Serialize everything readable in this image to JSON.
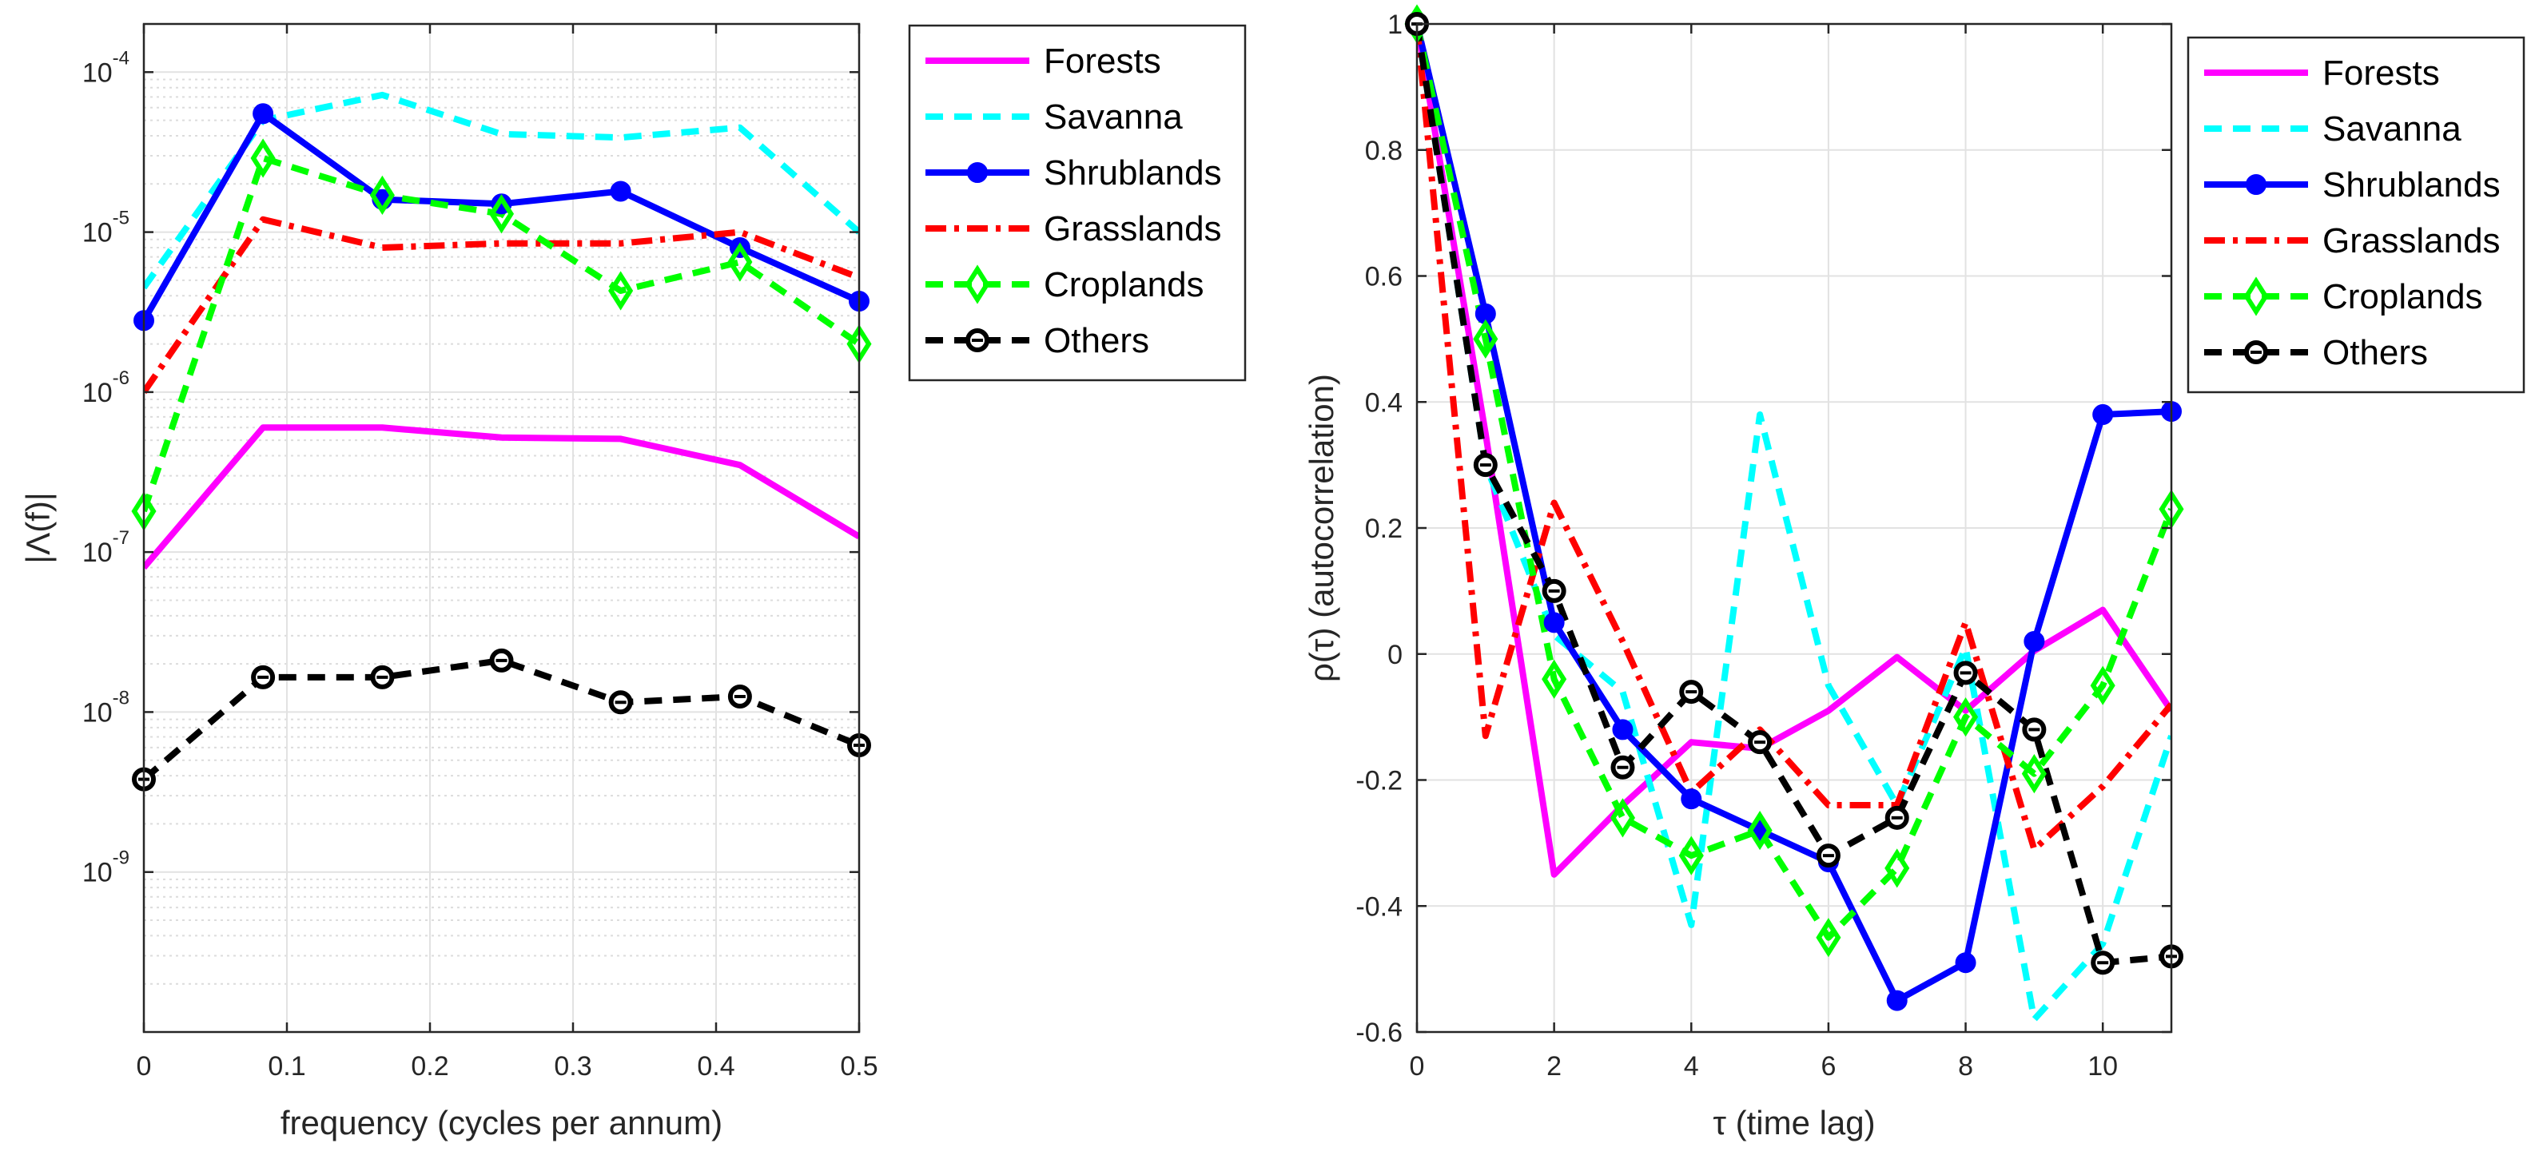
{
  "chart_data": [
    {
      "type": "line",
      "y_scale": "log",
      "xlabel": "frequency (cycles per annum)",
      "ylabel": "|Λ(f)|",
      "xlim": [
        0,
        0.5
      ],
      "ylim": [
        1e-10,
        0.0002
      ],
      "x_ticks": [
        0,
        0.1,
        0.2,
        0.3,
        0.4,
        0.5
      ],
      "x_tick_labels": [
        "0",
        "0.1",
        "0.2",
        "0.3",
        "0.4",
        "0.5"
      ],
      "y_ticks": [
        {
          "value": 1e-09,
          "base": "10",
          "exp": "-9"
        },
        {
          "value": 1e-08,
          "base": "10",
          "exp": "-8"
        },
        {
          "value": 1e-07,
          "base": "10",
          "exp": "-7"
        },
        {
          "value": 1e-06,
          "base": "10",
          "exp": "-6"
        },
        {
          "value": 1e-05,
          "base": "10",
          "exp": "-5"
        },
        {
          "value": 0.0001,
          "base": "10",
          "exp": "-4"
        }
      ],
      "grid": true,
      "legend_position": "outside-right",
      "x": [
        0,
        0.0833,
        0.1667,
        0.25,
        0.3333,
        0.4167,
        0.5
      ],
      "series": [
        {
          "name": "Forests",
          "color": "#ff00ff",
          "style": "solid",
          "marker": "none",
          "values": [
            8e-08,
            6e-07,
            6e-07,
            5.2e-07,
            5.1e-07,
            3.5e-07,
            1.25e-07
          ]
        },
        {
          "name": "Savanna",
          "color": "#00ffff",
          "style": "dashed",
          "marker": "none",
          "values": [
            4.5e-06,
            5e-05,
            7.2e-05,
            4.1e-05,
            3.9e-05,
            4.5e-05,
            1e-05
          ]
        },
        {
          "name": "Shrublands",
          "color": "#0000ff",
          "style": "solid",
          "marker": "dot",
          "values": [
            2.8e-06,
            5.5e-05,
            1.6e-05,
            1.5e-05,
            1.8e-05,
            8e-06,
            3.7e-06
          ]
        },
        {
          "name": "Grasslands",
          "color": "#ff0000",
          "style": "dashdot",
          "marker": "none",
          "values": [
            1e-06,
            1.2e-05,
            8e-06,
            8.5e-06,
            8.5e-06,
            1e-05,
            5.2e-06
          ]
        },
        {
          "name": "Croplands",
          "color": "#00ff00",
          "style": "dashed",
          "marker": "diamond",
          "values": [
            1.8e-07,
            2.9e-05,
            1.7e-05,
            1.3e-05,
            4.3e-06,
            6.5e-06,
            2e-06
          ]
        },
        {
          "name": "Others",
          "color": "#000000",
          "style": "dashed",
          "marker": "circle-dash",
          "values": [
            3.8e-09,
            1.65e-08,
            1.65e-08,
            2.1e-08,
            1.15e-08,
            1.25e-08,
            6.2e-09
          ]
        }
      ]
    },
    {
      "type": "line",
      "y_scale": "linear",
      "xlabel": "τ (time lag)",
      "ylabel": "ρ(τ) (autocorrelation)",
      "xlim": [
        0,
        11
      ],
      "ylim": [
        -0.6,
        1
      ],
      "x_ticks": [
        0,
        2,
        4,
        6,
        8,
        10
      ],
      "x_tick_labels": [
        "0",
        "2",
        "4",
        "6",
        "8",
        "10"
      ],
      "y_ticks": [
        -0.6,
        -0.4,
        -0.2,
        0,
        0.2,
        0.4,
        0.6,
        0.8,
        1
      ],
      "y_tick_labels": [
        "-0.6",
        "-0.4",
        "-0.2",
        "0",
        "0.2",
        "0.4",
        "0.6",
        "0.8",
        "1"
      ],
      "grid": true,
      "legend_position": "top-right",
      "x": [
        0,
        1,
        2,
        3,
        4,
        5,
        6,
        7,
        8,
        9,
        10,
        11
      ],
      "series": [
        {
          "name": "Forests",
          "color": "#ff00ff",
          "style": "solid",
          "marker": "none",
          "values": [
            1,
            0.35,
            -0.35,
            -0.24,
            -0.14,
            -0.15,
            -0.09,
            -0.005,
            -0.09,
            0.005,
            0.07,
            -0.09
          ]
        },
        {
          "name": "Savanna",
          "color": "#00ffff",
          "style": "dashed",
          "marker": "none",
          "values": [
            1,
            0.3,
            0.03,
            -0.06,
            -0.43,
            0.38,
            -0.05,
            -0.24,
            0.01,
            -0.58,
            -0.46,
            -0.13
          ]
        },
        {
          "name": "Shrublands",
          "color": "#0000ff",
          "style": "solid",
          "marker": "dot",
          "values": [
            1,
            0.54,
            0.05,
            -0.12,
            -0.23,
            -0.28,
            -0.33,
            -0.55,
            -0.49,
            0.02,
            0.38,
            0.385
          ]
        },
        {
          "name": "Grasslands",
          "color": "#ff0000",
          "style": "dashdot",
          "marker": "none",
          "values": [
            1,
            -0.13,
            0.24,
            0.02,
            -0.22,
            -0.12,
            -0.24,
            -0.24,
            0.05,
            -0.31,
            -0.21,
            -0.08
          ]
        },
        {
          "name": "Croplands",
          "color": "#00ff00",
          "style": "dashed",
          "marker": "diamond",
          "values": [
            1,
            0.5,
            -0.04,
            -0.26,
            -0.32,
            -0.28,
            -0.45,
            -0.34,
            -0.1,
            -0.19,
            -0.05,
            0.23
          ]
        },
        {
          "name": "Others",
          "color": "#000000",
          "style": "dashed",
          "marker": "circle-dash",
          "values": [
            1,
            0.3,
            0.1,
            -0.18,
            -0.06,
            -0.14,
            -0.32,
            -0.26,
            -0.03,
            -0.12,
            -0.49,
            -0.48
          ]
        }
      ]
    }
  ]
}
